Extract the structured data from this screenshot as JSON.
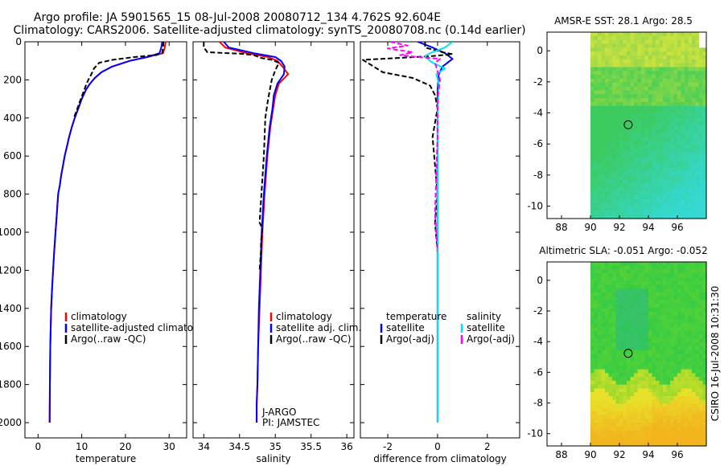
{
  "header": {
    "line1": "Argo profile: JA 5901565_15 08-Jul-2008 20080712_134 4.762S 92.604E",
    "line2": "Climatology: CARS2006. Satellite-adjusted climatology: synTS_20080708.nc (0.14d earlier)"
  },
  "footer_stamp": "CSIRO 16-Jul-2008 10:31:30",
  "chart_data": [
    {
      "id": "temperature",
      "type": "line",
      "xlabel": "temperature",
      "ylabel": "",
      "xlim": [
        -3,
        34
      ],
      "ylim": [
        2080,
        0
      ],
      "xticks": [
        0,
        10,
        20,
        30
      ],
      "yticks": [
        0,
        200,
        400,
        600,
        800,
        1000,
        1200,
        1400,
        1600,
        1800,
        2000
      ],
      "legend": [
        "climatology",
        "satellite-adjusted climatology",
        "Argo(..raw -QC)"
      ],
      "series": [
        {
          "name": "climatology",
          "color": "#ff0000",
          "dash": "",
          "x": [
            29.2,
            29.0,
            28.6,
            25,
            21,
            17,
            14.5,
            13,
            11.9,
            11,
            10,
            9.2,
            8.4,
            7.7,
            7.1,
            6.6,
            6.1,
            5.7,
            5.3,
            5,
            4.6,
            4.3,
            4,
            3.7,
            3.45,
            3.2,
            3.0,
            2.8,
            2.7,
            2.65
          ],
          "y": [
            0,
            30,
            60,
            80,
            100,
            130,
            160,
            190,
            220,
            250,
            300,
            350,
            400,
            450,
            500,
            550,
            600,
            650,
            700,
            750,
            800,
            900,
            1000,
            1100,
            1200,
            1300,
            1400,
            1600,
            1800,
            2000
          ]
        },
        {
          "name": "satellite-adjusted climatology",
          "color": "#0000ff",
          "dash": "",
          "x": [
            28.4,
            28.2,
            27.8,
            25,
            21,
            17,
            14.5,
            13,
            11.9,
            11,
            10,
            9.2,
            8.4,
            7.7,
            7.1,
            6.6,
            6.1,
            5.7,
            5.3,
            5,
            4.6,
            4.3,
            4,
            3.7,
            3.45,
            3.2,
            3.0,
            2.8,
            2.7,
            2.65
          ],
          "y": [
            0,
            30,
            60,
            80,
            100,
            130,
            160,
            190,
            220,
            250,
            300,
            350,
            400,
            450,
            500,
            550,
            600,
            650,
            700,
            750,
            800,
            900,
            1000,
            1100,
            1200,
            1300,
            1400,
            1600,
            1800,
            2000
          ]
        },
        {
          "name": "Argo(..raw -QC)",
          "color": "#000000",
          "dash": "6,3",
          "x": [
            28.7,
            28.6,
            28.4,
            27,
            22,
            17,
            14,
            12.8,
            12.2,
            11.5,
            11.1,
            10.6,
            9.8,
            9.0,
            8.2
          ],
          "y": [
            0,
            30,
            60,
            70,
            80,
            95,
            110,
            140,
            170,
            200,
            220,
            250,
            300,
            350,
            400
          ]
        }
      ]
    },
    {
      "id": "salinity",
      "type": "line",
      "xlabel": "salinity",
      "ylabel": "",
      "xlim": [
        33.85,
        36.1
      ],
      "ylim": [
        2080,
        0
      ],
      "xticks": [
        34,
        34.5,
        35,
        35.5,
        36
      ],
      "yticks": [
        0,
        200,
        400,
        600,
        800,
        1000,
        1200,
        1400,
        1600,
        1800,
        2000
      ],
      "legend": [
        "climatology",
        "satellite adj. clim.",
        "Argo(..raw -QC)"
      ],
      "annotations": [
        "J-ARGO",
        "PI: JAMSTEC"
      ],
      "series": [
        {
          "name": "climatology",
          "color": "#ff0000",
          "dash": "",
          "x": [
            34.22,
            34.3,
            34.6,
            34.9,
            35.03,
            35.1,
            35.18,
            35.05,
            35.0,
            34.97,
            34.93,
            34.89,
            34.85,
            34.82,
            34.8,
            34.78,
            34.76,
            34.75,
            34.74,
            34.74
          ],
          "y": [
            0,
            30,
            60,
            80,
            100,
            130,
            170,
            220,
            280,
            350,
            450,
            600,
            800,
            1000,
            1200,
            1400,
            1600,
            1800,
            1900,
            2000
          ]
        },
        {
          "name": "satellite adj. clim.",
          "color": "#0000ff",
          "dash": "",
          "x": [
            34.28,
            34.35,
            34.7,
            35.0,
            35.08,
            35.13,
            35.12,
            35.03,
            34.98,
            34.96,
            34.92,
            34.88,
            34.84,
            34.81,
            34.79,
            34.77,
            34.76,
            34.75,
            34.74,
            34.74
          ],
          "y": [
            0,
            30,
            60,
            80,
            100,
            130,
            170,
            220,
            280,
            350,
            450,
            600,
            800,
            1000,
            1200,
            1400,
            1600,
            1800,
            1900,
            2000
          ]
        },
        {
          "name": "Argo(..raw -QC)",
          "color": "#000000",
          "dash": "6,3",
          "x": [
            34.0,
            34.0,
            34.05,
            34.35,
            34.5,
            34.7,
            34.8,
            34.95,
            35.05,
            35.0,
            34.95,
            34.9,
            34.86,
            34.84,
            34.78,
            34.82,
            34.8,
            34.8,
            34.78
          ],
          "y": [
            0,
            30,
            55,
            60,
            62,
            70,
            85,
            95,
            110,
            150,
            200,
            300,
            400,
            600,
            950,
            980,
            1050,
            1100,
            1200
          ]
        }
      ]
    },
    {
      "id": "difference",
      "type": "line",
      "xlabel": "difference from climatology",
      "ylabel": "",
      "xlim": [
        -3.1,
        3.3
      ],
      "ylim": [
        2080,
        0
      ],
      "xticks": [
        -2,
        0,
        2
      ],
      "yticks": [
        0,
        200,
        400,
        600,
        800,
        1000,
        1200,
        1400,
        1600,
        1800,
        2000
      ],
      "legend": [
        "temperature",
        "satellite",
        "Argo(-adj)",
        "salinity",
        "satellite",
        "Argo(-adj)"
      ],
      "series": [
        {
          "name": "temperature satellite",
          "color": "#0000ff",
          "dash": "",
          "x": [
            -0.8,
            -0.2,
            0.3,
            0.6,
            0.4,
            0.2,
            0.05,
            0.0,
            0.0,
            0.0,
            0.0
          ],
          "y": [
            0,
            30,
            60,
            90,
            110,
            130,
            170,
            250,
            500,
            1000,
            2000
          ]
        },
        {
          "name": "temperature Argo(-adj)",
          "color": "#000000",
          "dash": "6,3",
          "x": [
            -0.5,
            -0.5,
            0.2,
            0.6,
            -0.2,
            -3.0,
            -2.2,
            -1.0,
            -0.3,
            -0.1,
            0.0,
            -0.2,
            0.0,
            -0.1,
            0.0
          ],
          "y": [
            0,
            30,
            55,
            65,
            75,
            95,
            160,
            190,
            230,
            280,
            350,
            500,
            800,
            950,
            1100
          ]
        },
        {
          "name": "salinity satellite",
          "color": "#00e5ee",
          "dash": "",
          "x": [
            0.6,
            0.3,
            -0.3,
            -0.5,
            -0.4,
            -0.2,
            0.3,
            -0.05,
            0.05,
            0.0,
            0.0,
            0.0
          ],
          "y": [
            0,
            30,
            60,
            75,
            90,
            110,
            140,
            170,
            220,
            400,
            1000,
            2000
          ]
        },
        {
          "name": "salinity Argo(-adj)",
          "color": "#ff00ff",
          "dash": "6,3",
          "x": [
            -1.9,
            -1.2,
            -2.0,
            -1.0,
            -1.5,
            -0.8,
            0.1,
            -0.1,
            0.1,
            0.0,
            0.0,
            -0.1,
            0.0
          ],
          "y": [
            0,
            20,
            35,
            55,
            70,
            80,
            90,
            110,
            200,
            300,
            500,
            900,
            1100
          ]
        }
      ]
    },
    {
      "id": "sst_map",
      "type": "heatmap",
      "title": "AMSR-E SST: 28.1 Argo: 28.5",
      "xlim": [
        87,
        98
      ],
      "ylim": [
        -10.8,
        1.2
      ],
      "xticks": [
        88,
        90,
        92,
        94,
        96
      ],
      "yticks": [
        0,
        -2,
        -4,
        -6,
        -8,
        -10
      ],
      "marker": {
        "x": 92.604,
        "y": -4.762
      }
    },
    {
      "id": "sla_map",
      "type": "heatmap",
      "title": "Altimetric SLA: -0.051 Argo: -0.052",
      "xlim": [
        87,
        98
      ],
      "ylim": [
        -10.8,
        1.2
      ],
      "xticks": [
        88,
        90,
        92,
        94,
        96
      ],
      "yticks": [
        0,
        -2,
        -4,
        -6,
        -8,
        -10
      ],
      "marker": {
        "x": 92.604,
        "y": -4.762
      }
    }
  ]
}
